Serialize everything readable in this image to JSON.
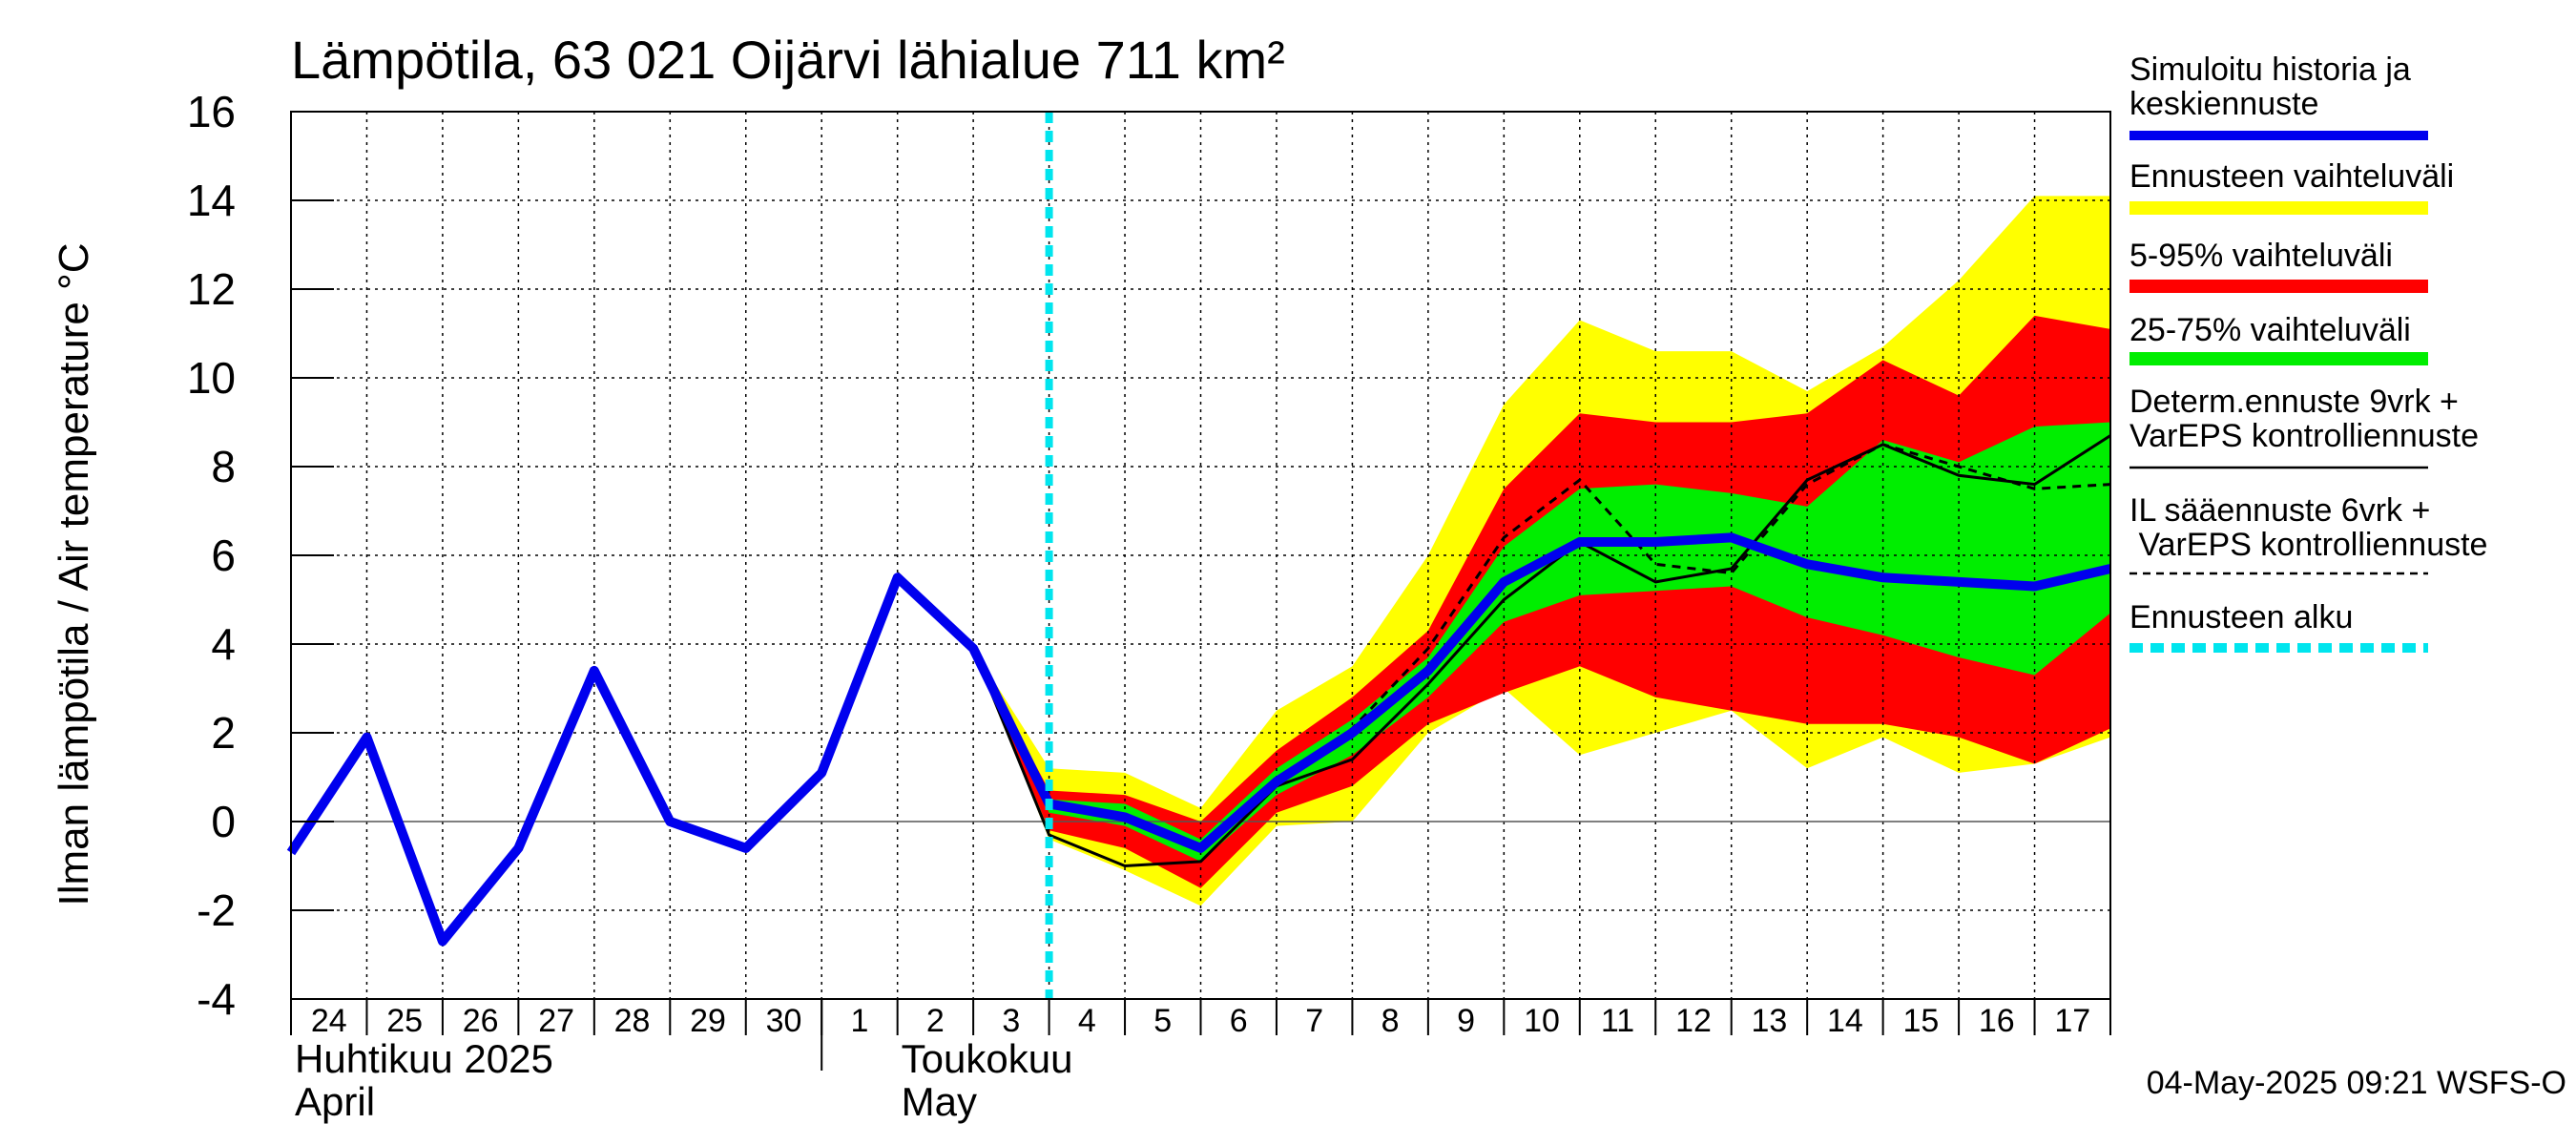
{
  "chart_data": {
    "type": "area",
    "title": "Lämpötila, 63 021 Oijärvi lähialue 711 km²",
    "ylabel": "Ilman lämpötila / Air temperature    °C",
    "ylim": [
      -4,
      16
    ],
    "yticks": [
      -4,
      -2,
      0,
      2,
      4,
      6,
      8,
      10,
      12,
      14,
      16
    ],
    "xlim": [
      0,
      24
    ],
    "day_labels": [
      "24",
      "25",
      "26",
      "27",
      "28",
      "29",
      "30",
      "1",
      "2",
      "3",
      "4",
      "5",
      "6",
      "7",
      "8",
      "9",
      "10",
      "11",
      "12",
      "13",
      "14",
      "15",
      "16",
      "17"
    ],
    "month_labels": [
      {
        "fi": "Huhtikuu  2025",
        "en": "April",
        "at": 0
      },
      {
        "fi": "Toukokuu",
        "en": "May",
        "at": 8
      }
    ],
    "month_boundary": 7,
    "forecast_start": 10,
    "x": [
      0,
      1,
      2,
      3,
      4,
      5,
      6,
      7,
      8,
      9,
      10,
      11,
      12,
      13,
      14,
      15,
      16,
      17,
      18,
      19,
      20,
      21,
      22,
      23,
      24
    ],
    "simulated_history": [
      -0.7,
      1.9,
      -2.7,
      -0.6,
      3.4,
      0.0,
      -0.6,
      1.1,
      5.5,
      3.9,
      0.4,
      0.1,
      -0.6,
      0.9,
      2.0,
      3.4,
      5.4,
      6.3,
      6.3,
      6.4,
      5.8,
      5.5,
      5.4,
      5.3,
      5.7
    ],
    "band_outer": {
      "x": [
        9,
        10,
        11,
        12,
        13,
        14,
        15,
        16,
        17,
        18,
        19,
        20,
        21,
        22,
        23,
        24
      ],
      "low": [
        3.9,
        -0.4,
        -1.1,
        -1.9,
        -0.1,
        0.0,
        2.0,
        3.0,
        1.5,
        2.0,
        2.5,
        1.2,
        1.9,
        1.1,
        1.3,
        1.9
      ],
      "high": [
        3.9,
        1.2,
        1.1,
        0.3,
        2.5,
        3.5,
        6.0,
        9.4,
        11.3,
        10.6,
        10.6,
        9.7,
        10.7,
        12.2,
        14.1,
        14.1
      ]
    },
    "band_5_95": {
      "x": [
        9,
        10,
        11,
        12,
        13,
        14,
        15,
        16,
        17,
        18,
        19,
        20,
        21,
        22,
        23,
        24
      ],
      "low": [
        3.9,
        -0.2,
        -0.6,
        -1.5,
        0.2,
        0.8,
        2.2,
        2.9,
        3.5,
        2.8,
        2.5,
        2.2,
        2.2,
        1.9,
        1.3,
        2.1
      ],
      "high": [
        3.9,
        0.7,
        0.6,
        0.0,
        1.6,
        2.8,
        4.3,
        7.5,
        9.2,
        9.0,
        9.0,
        9.2,
        10.4,
        9.6,
        11.4,
        11.1
      ]
    },
    "band_25_75": {
      "x": [
        9,
        10,
        11,
        12,
        13,
        14,
        15,
        16,
        17,
        18,
        19,
        20,
        21,
        22,
        23,
        24
      ],
      "low": [
        3.9,
        0.2,
        -0.1,
        -0.9,
        0.6,
        1.5,
        2.8,
        4.5,
        5.1,
        5.2,
        5.3,
        4.6,
        4.2,
        3.7,
        3.3,
        4.7
      ],
      "high": [
        3.9,
        0.5,
        0.4,
        -0.4,
        1.2,
        2.3,
        3.7,
        6.2,
        7.5,
        7.6,
        7.4,
        7.1,
        8.6,
        8.1,
        8.9,
        9.0
      ]
    },
    "deterministic": {
      "x": [
        8,
        9,
        10,
        11,
        12,
        13,
        14,
        15,
        16,
        17,
        18,
        19,
        20,
        21,
        22,
        23,
        24
      ],
      "values": [
        5.6,
        3.9,
        -0.3,
        -1.0,
        -0.9,
        0.8,
        1.4,
        3.1,
        5.0,
        6.3,
        5.4,
        5.7,
        7.7,
        8.5,
        7.8,
        7.6,
        8.7
      ]
    },
    "il_forecast": {
      "x": [
        13,
        14,
        15,
        16,
        17,
        18,
        19,
        20,
        21,
        22,
        23,
        24
      ],
      "values": [
        0.8,
        2.1,
        3.9,
        6.4,
        7.7,
        5.8,
        5.6,
        7.6,
        8.5,
        8.0,
        7.5,
        7.6
      ]
    },
    "legend": [
      {
        "label": "Simuloitu historia ja keskiennuste",
        "color": "#0000ee",
        "style": "thick"
      },
      {
        "label": "Ennusteen vaihteluväli",
        "color": "#ffff00",
        "style": "band"
      },
      {
        "label": "5-95% vaihteluväli",
        "color": "#ff0000",
        "style": "band"
      },
      {
        "label": "25-75% vaihteluväli",
        "color": "#00ee00",
        "style": "band"
      },
      {
        "label": "Determ.ennuste 9vrk + VarEPS kontrolliennuste",
        "color": "#000000",
        "style": "solid"
      },
      {
        "label": "IL sääennuste 6vrk  + VarEPS kontrolliennuste",
        "color": "#000000",
        "style": "dashed"
      },
      {
        "label": "Ennusteen alku",
        "color": "#00e5ee",
        "style": "dotted"
      }
    ],
    "legend_placement": "right",
    "colors": {
      "yellow": "#ffff00",
      "red": "#ff0000",
      "green": "#00ee00",
      "blue": "#0000ee",
      "cyan": "#00e5ee"
    },
    "grid": true
  },
  "footer": "04-May-2025 09:21 WSFS-O"
}
